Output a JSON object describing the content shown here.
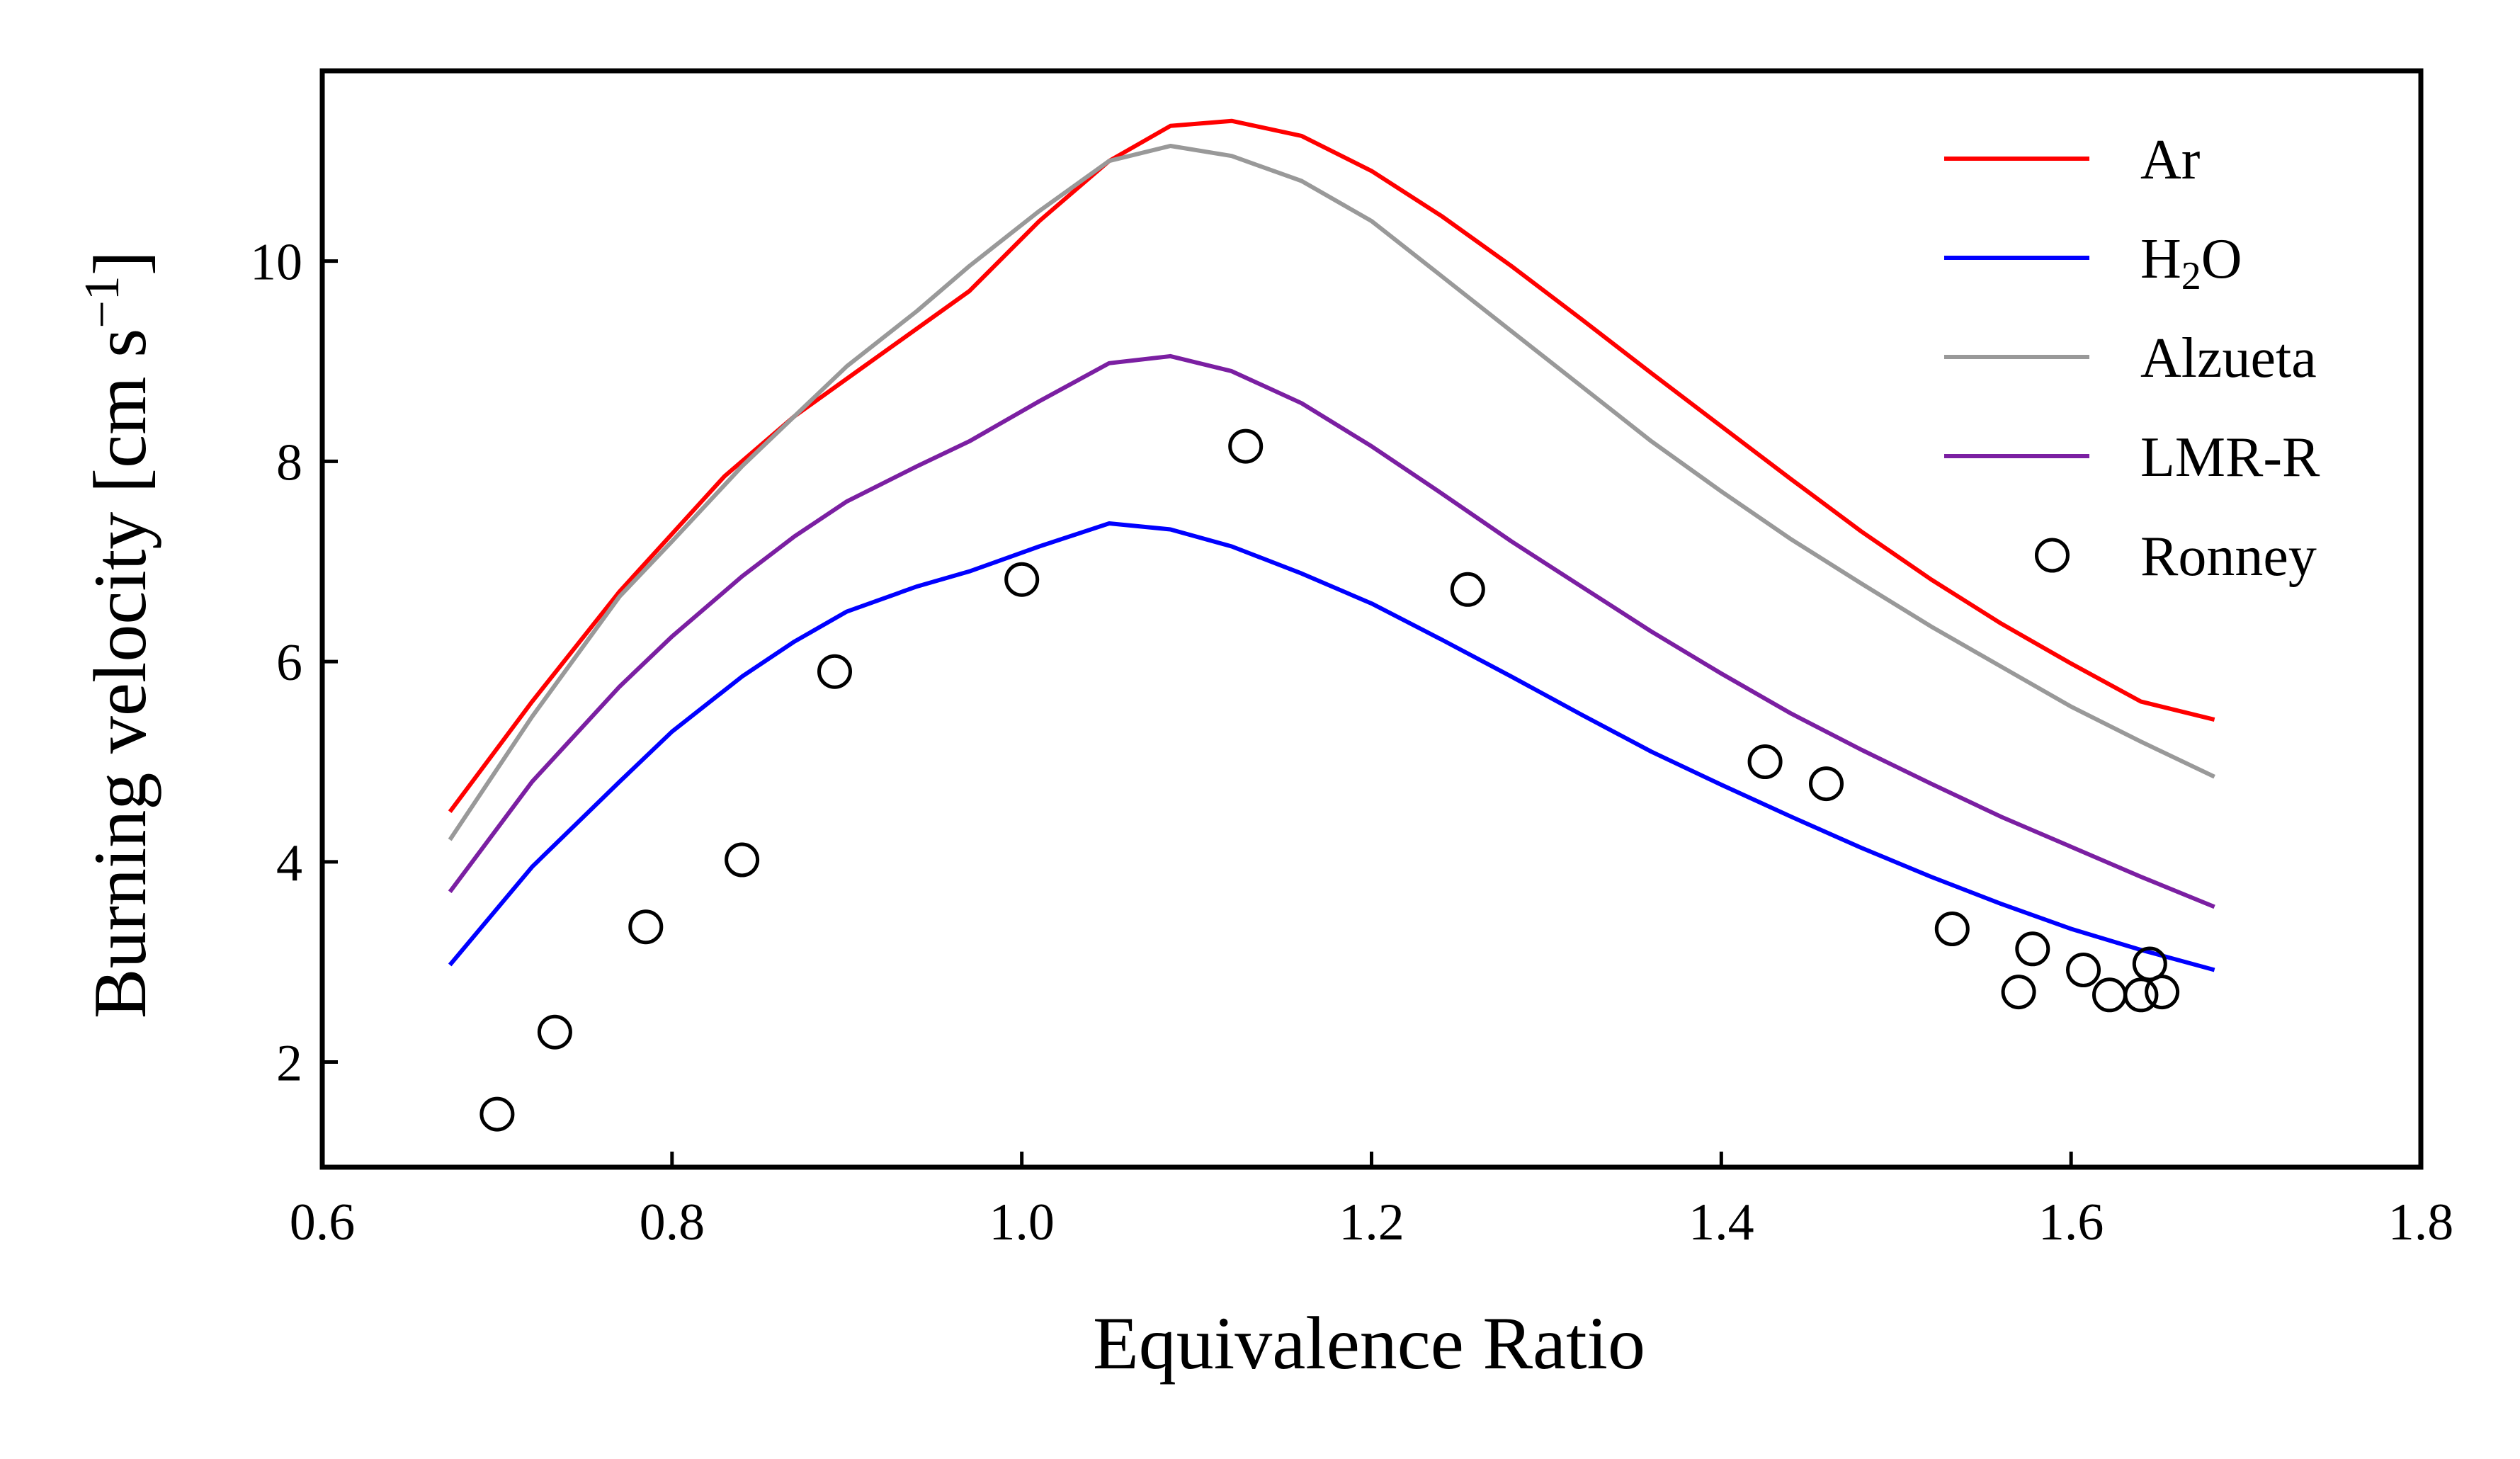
{
  "chart_data": {
    "type": "line",
    "title": "",
    "xlabel": "Equivalence Ratio",
    "ylabel_main": "Burning velocity [cm s",
    "ylabel_sup": "−1",
    "ylabel_close": "]",
    "xlim": [
      0.6,
      1.8
    ],
    "ylim": [
      0.95,
      11.9
    ],
    "xticks": [
      0.6,
      0.8,
      1.0,
      1.2,
      1.4,
      1.6,
      1.8
    ],
    "xtick_labels": [
      "0.6",
      "0.8",
      "1.0",
      "1.2",
      "1.4",
      "1.6",
      "1.8"
    ],
    "yticks": [
      2,
      4,
      6,
      8,
      10
    ],
    "ytick_labels": [
      "2",
      "4",
      "6",
      "8",
      "10"
    ],
    "grid": false,
    "legend_position": "top-right",
    "series": [
      {
        "name": "Ar",
        "color": "#ff0000",
        "style": "line",
        "x": [
          0.673,
          0.72,
          0.77,
          0.83,
          0.87,
          0.91,
          0.97,
          1.01,
          1.05,
          1.085,
          1.12,
          1.16,
          1.2,
          1.24,
          1.28,
          1.32,
          1.36,
          1.4,
          1.44,
          1.48,
          1.52,
          1.56,
          1.6,
          1.64,
          1.682
        ],
        "y": [
          4.5,
          5.6,
          6.7,
          7.85,
          8.45,
          8.95,
          9.7,
          10.4,
          11.0,
          11.35,
          11.4,
          11.25,
          10.9,
          10.45,
          9.95,
          9.42,
          8.88,
          8.35,
          7.82,
          7.3,
          6.82,
          6.38,
          5.98,
          5.6,
          5.42
        ]
      },
      {
        "name": "H2O",
        "name_main": "H",
        "name_sub": "2",
        "name_end": "O",
        "color": "#0000ff",
        "style": "line",
        "x": [
          0.673,
          0.72,
          0.77,
          0.8,
          0.84,
          0.87,
          0.9,
          0.94,
          0.97,
          1.01,
          1.05,
          1.085,
          1.12,
          1.16,
          1.2,
          1.24,
          1.28,
          1.32,
          1.36,
          1.4,
          1.44,
          1.48,
          1.52,
          1.56,
          1.6,
          1.64,
          1.682
        ],
        "y": [
          2.97,
          3.95,
          4.8,
          5.3,
          5.85,
          6.2,
          6.5,
          6.75,
          6.9,
          7.15,
          7.38,
          7.32,
          7.15,
          6.88,
          6.58,
          6.22,
          5.85,
          5.47,
          5.1,
          4.77,
          4.45,
          4.14,
          3.85,
          3.58,
          3.33,
          3.12,
          2.92
        ]
      },
      {
        "name": "Alzueta",
        "color": "#999999",
        "style": "line",
        "x": [
          0.673,
          0.72,
          0.77,
          0.8,
          0.84,
          0.87,
          0.9,
          0.94,
          0.97,
          1.01,
          1.05,
          1.085,
          1.12,
          1.16,
          1.2,
          1.24,
          1.28,
          1.32,
          1.36,
          1.4,
          1.44,
          1.48,
          1.52,
          1.56,
          1.6,
          1.64,
          1.682
        ],
        "y": [
          4.22,
          5.45,
          6.65,
          7.2,
          7.95,
          8.45,
          8.95,
          9.5,
          9.95,
          10.5,
          11.0,
          11.15,
          11.05,
          10.8,
          10.4,
          9.85,
          9.3,
          8.75,
          8.2,
          7.7,
          7.22,
          6.78,
          6.35,
          5.95,
          5.55,
          5.2,
          4.85
        ]
      },
      {
        "name": "LMR-R",
        "color": "#7b1fa2",
        "style": "line",
        "x": [
          0.673,
          0.72,
          0.77,
          0.8,
          0.84,
          0.87,
          0.9,
          0.94,
          0.97,
          1.01,
          1.05,
          1.085,
          1.12,
          1.16,
          1.2,
          1.24,
          1.28,
          1.32,
          1.36,
          1.4,
          1.44,
          1.48,
          1.52,
          1.56,
          1.6,
          1.64,
          1.682
        ],
        "y": [
          3.7,
          4.8,
          5.75,
          6.25,
          6.85,
          7.25,
          7.6,
          7.95,
          8.2,
          8.6,
          8.98,
          9.05,
          8.9,
          8.58,
          8.15,
          7.68,
          7.2,
          6.75,
          6.3,
          5.88,
          5.48,
          5.12,
          4.78,
          4.45,
          4.15,
          3.85,
          3.55
        ]
      },
      {
        "name": "Ronney",
        "color": "#000000",
        "style": "marker",
        "x": [
          0.7,
          0.733,
          0.785,
          0.84,
          0.893,
          1.0,
          1.128,
          1.255,
          1.425,
          1.46,
          1.532,
          1.57,
          1.578,
          1.607,
          1.622,
          1.64,
          1.645,
          1.652
        ],
        "y": [
          1.48,
          2.3,
          3.35,
          4.02,
          5.9,
          6.82,
          8.15,
          6.72,
          5.0,
          4.78,
          3.33,
          2.7,
          3.13,
          2.92,
          2.67,
          2.67,
          2.98,
          2.7
        ]
      }
    ]
  }
}
